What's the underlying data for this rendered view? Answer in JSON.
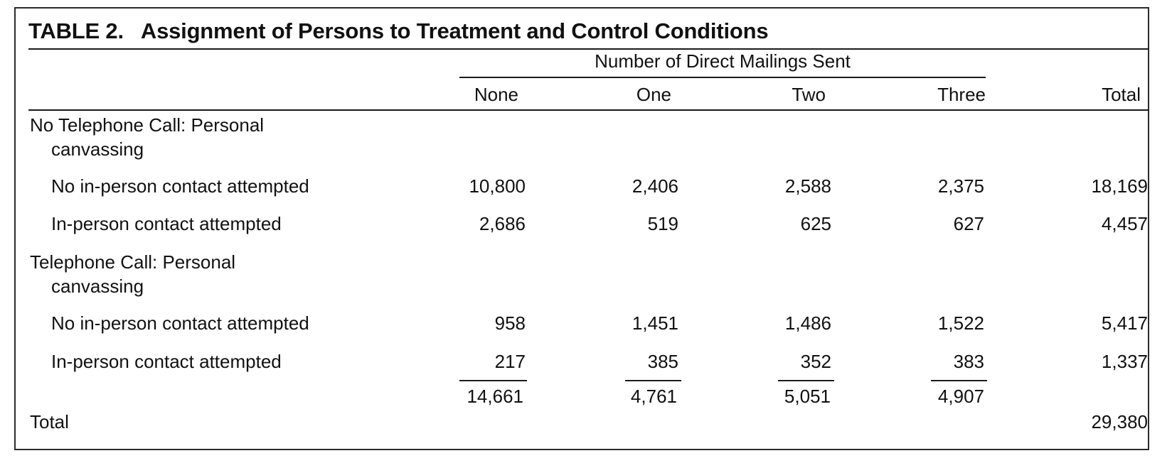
{
  "table": {
    "title_number": "TABLE 2.",
    "title_text": "Assignment of Persons to Treatment and Control Conditions",
    "spanner": "Number of Direct Mailings Sent",
    "columns": [
      "None",
      "One",
      "Two",
      "Three",
      "Total"
    ],
    "group1": {
      "label_line1": "No Telephone Call: Personal",
      "label_line2": "canvassing",
      "rows": [
        {
          "label": "No in-person contact attempted",
          "values": [
            "10,800",
            "2,406",
            "2,588",
            "2,375",
            "18,169"
          ]
        },
        {
          "label": "In-person contact attempted",
          "values": [
            "2,686",
            "519",
            "625",
            "627",
            "4,457"
          ]
        }
      ]
    },
    "group2": {
      "label_line1": "Telephone Call: Personal",
      "label_line2": "canvassing",
      "rows": [
        {
          "label": "No in-person contact attempted",
          "values": [
            "958",
            "1,451",
            "1,486",
            "1,522",
            "5,417"
          ]
        },
        {
          "label": "In-person contact attempted",
          "values": [
            "217",
            "385",
            "352",
            "383",
            "1,337"
          ]
        }
      ]
    },
    "column_totals": [
      "14,661",
      "4,761",
      "5,051",
      "4,907"
    ],
    "total_label": "Total",
    "grand_total": "29,380"
  }
}
